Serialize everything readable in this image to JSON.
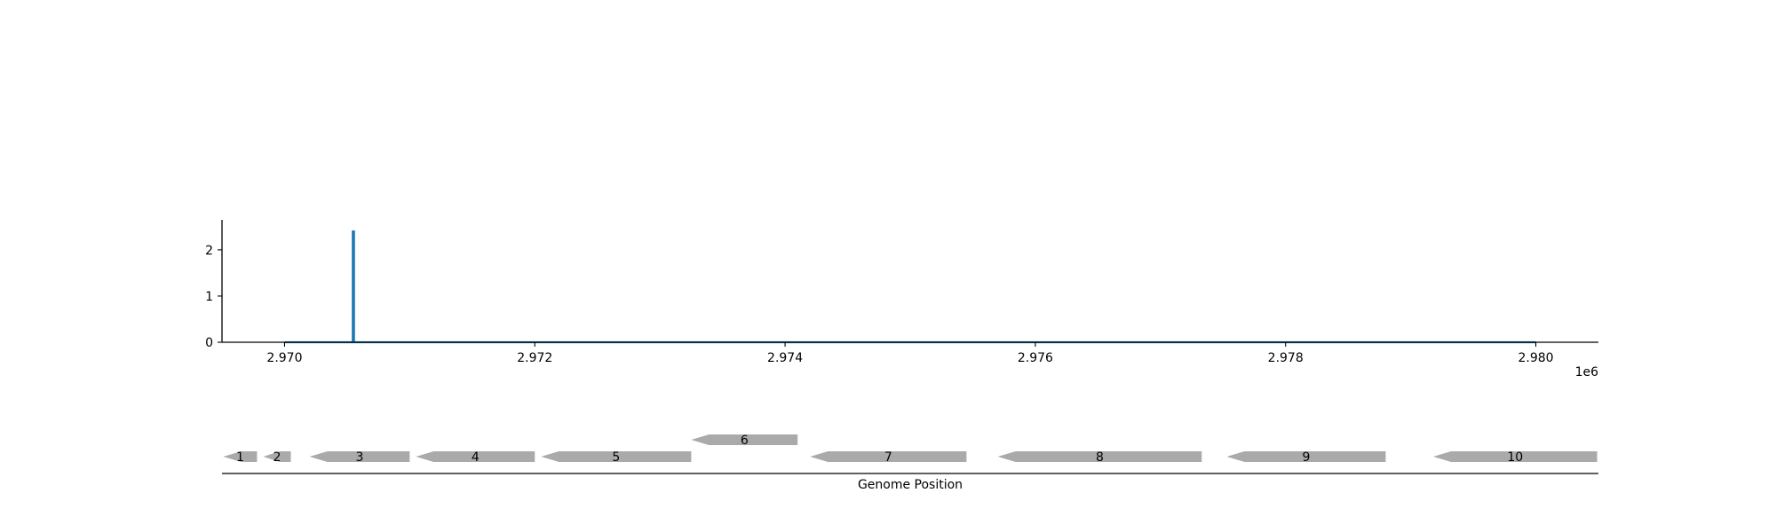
{
  "chart_data": [
    {
      "type": "line",
      "title": "",
      "xlabel": "",
      "ylabel": "",
      "offset_label": "1e6",
      "xlim": [
        2969500,
        2980500
      ],
      "ylim": [
        0,
        2.65
      ],
      "x_tick_values": [
        2970000,
        2972000,
        2974000,
        2976000,
        2978000,
        2980000
      ],
      "x_ticks": [
        "2.970",
        "2.972",
        "2.974",
        "2.976",
        "2.978",
        "2.980"
      ],
      "y_tick_values": [
        0,
        1,
        2
      ],
      "y_ticks": [
        "0",
        "1",
        "2"
      ],
      "color": "#1f77b4",
      "series": [
        {
          "x": [
            2970000,
            2970545,
            2970545,
            2970555,
            2970555,
            2980000
          ],
          "y": [
            0,
            0,
            2.4,
            2.4,
            0,
            0
          ]
        }
      ]
    },
    {
      "type": "gene_track",
      "xlabel": "Genome Position",
      "xlim": [
        2969500,
        2980500
      ],
      "color": "#aaaaaa",
      "genes": [
        {
          "label": "1",
          "start": 2969510,
          "end": 2969780,
          "strand": "-",
          "row": 0
        },
        {
          "label": "2",
          "start": 2969830,
          "end": 2970050,
          "strand": "-",
          "row": 0
        },
        {
          "label": "3",
          "start": 2970200,
          "end": 2971000,
          "strand": "-",
          "row": 0
        },
        {
          "label": "4",
          "start": 2971050,
          "end": 2972000,
          "strand": "-",
          "row": 0
        },
        {
          "label": "5",
          "start": 2972050,
          "end": 2973250,
          "strand": "-",
          "row": 0
        },
        {
          "label": "6",
          "start": 2973250,
          "end": 2974100,
          "strand": "-",
          "row": 1
        },
        {
          "label": "7",
          "start": 2974200,
          "end": 2975450,
          "strand": "-",
          "row": 0
        },
        {
          "label": "8",
          "start": 2975700,
          "end": 2977330,
          "strand": "-",
          "row": 0
        },
        {
          "label": "9",
          "start": 2977530,
          "end": 2978800,
          "strand": "-",
          "row": 0
        },
        {
          "label": "10",
          "start": 2979180,
          "end": 2980490,
          "strand": "-",
          "row": 0
        }
      ]
    }
  ]
}
